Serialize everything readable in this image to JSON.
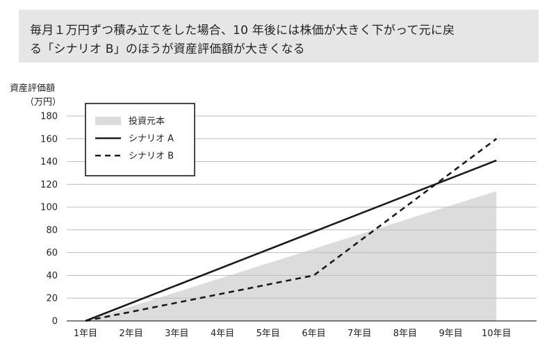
{
  "title": {
    "line1": "毎月１万円ずつ積み立てをした場合、10 年後には株価が大きく下がって元に戻",
    "line2": "る「シナリオ B」のほうが資産評価額が大きくなる"
  },
  "chart_data": {
    "type": "line",
    "ylabel": "資産評価額",
    "yunit": "（万円）",
    "categories": [
      "1年目",
      "2年目",
      "3年目",
      "4年目",
      "5年目",
      "6年目",
      "7年目",
      "8年目",
      "9年目",
      "10年目"
    ],
    "yticks": [
      0,
      20,
      40,
      60,
      80,
      100,
      120,
      140,
      160,
      180
    ],
    "ylim": [
      0,
      180
    ],
    "grid": true,
    "legend_position": "top-left",
    "series": [
      {
        "name": "投資元本",
        "style": "area",
        "color": "#dcdcdc",
        "x": [
          0,
          9
        ],
        "values": [
          0,
          114
        ]
      },
      {
        "name": "シナリオ A",
        "style": "solid",
        "color": "#1a1a1a",
        "x": [
          0,
          9
        ],
        "values": [
          0,
          141
        ]
      },
      {
        "name": "シナリオ B",
        "style": "dashed",
        "color": "#1a1a1a",
        "x": [
          0,
          5,
          9
        ],
        "values": [
          0,
          40,
          160
        ]
      }
    ]
  }
}
